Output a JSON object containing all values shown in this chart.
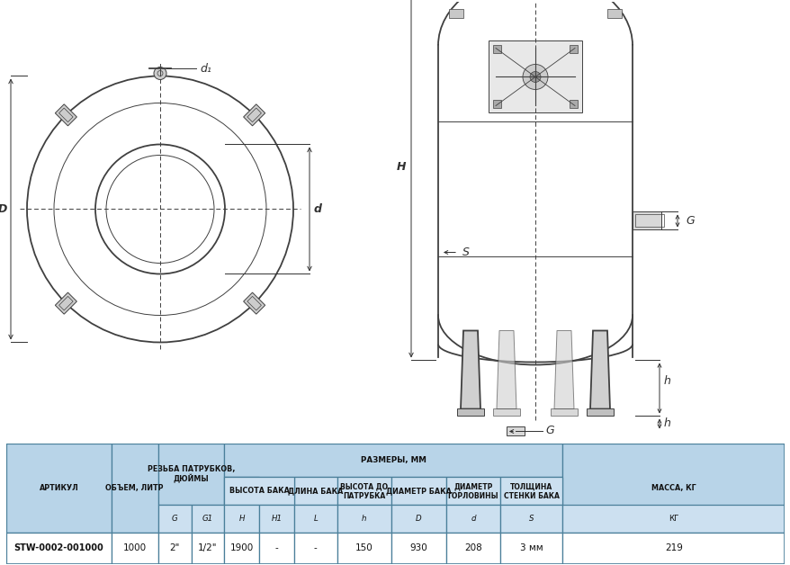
{
  "bg_color": "#ffffff",
  "dc": "#404040",
  "dim_color": "#303030",
  "hdr_bg": "#b8d4e8",
  "sub_bg": "#cce0f0",
  "data_bg": "#ffffff",
  "bold_bg": "#ffffff",
  "ec": "#4a7f9a",
  "article": "STW-0002-001000",
  "volume": "1000",
  "G": "2\"",
  "G1": "1/2\"",
  "H": "1900",
  "H1": "-",
  "L": "-",
  "h_val": "150",
  "D": "930",
  "d": "208",
  "S": "3 мм",
  "mass": "219"
}
